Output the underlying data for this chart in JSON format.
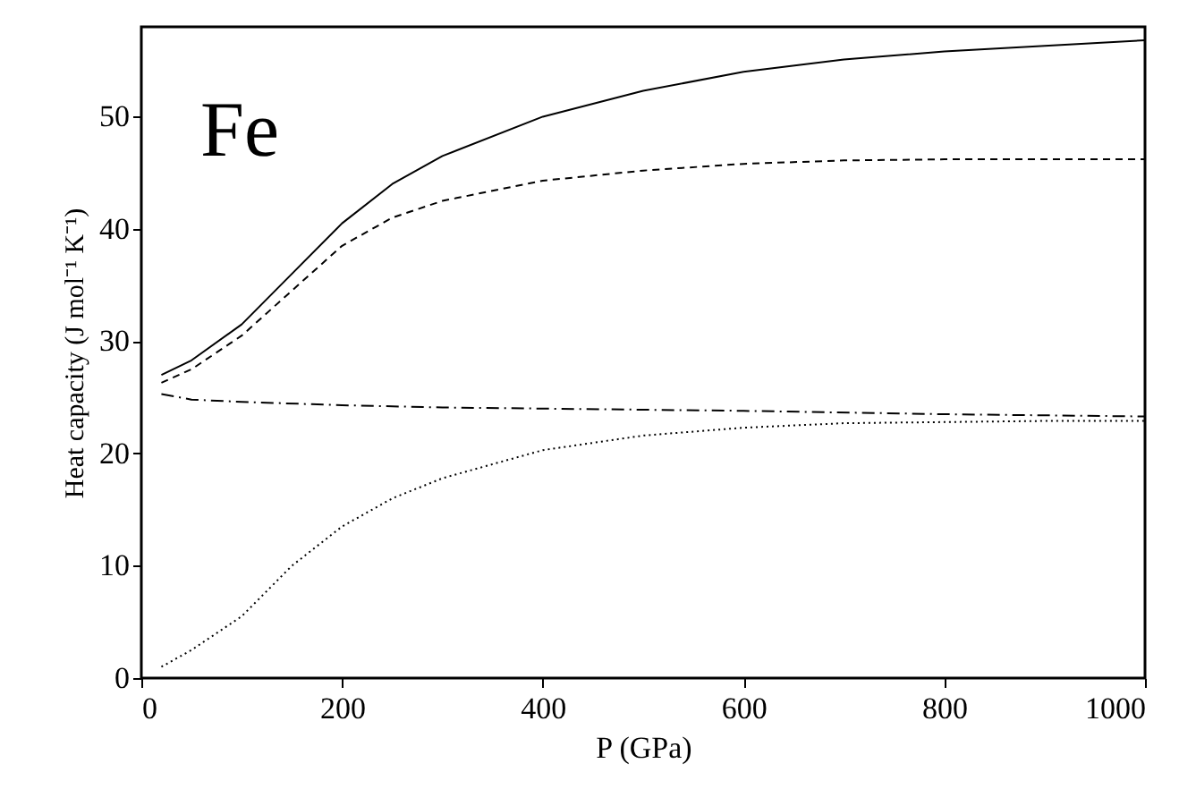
{
  "chart_data": {
    "type": "line",
    "xlabel": "P (GPa)",
    "ylabel": "Heat capacity (J mol⁻¹ K⁻¹)",
    "annotations": [
      "Fe"
    ],
    "xlim": [
      0,
      1000
    ],
    "xticks": [
      0,
      200,
      400,
      600,
      800,
      1000
    ],
    "ylim": [
      0,
      58
    ],
    "yticks": [
      0,
      10,
      20,
      30,
      40,
      50
    ],
    "grid": false,
    "marker": "none",
    "series": [
      {
        "color": "#000000",
        "line_style": "solid",
        "x": [
          20,
          50,
          100,
          150,
          200,
          250,
          300,
          400,
          500,
          600,
          700,
          800,
          900,
          1000
        ],
        "values": [
          27,
          28.3,
          31.5,
          36,
          40.5,
          44,
          46.5,
          50,
          52.3,
          54,
          55.1,
          55.8,
          56.3,
          56.8
        ]
      },
      {
        "color": "#000000",
        "line_style": "dashed",
        "x": [
          20,
          50,
          100,
          150,
          200,
          250,
          300,
          400,
          500,
          600,
          700,
          800,
          900,
          1000
        ],
        "values": [
          26.3,
          27.5,
          30.5,
          34.5,
          38.5,
          41,
          42.5,
          44.3,
          45.2,
          45.8,
          46.1,
          46.2,
          46.2,
          46.2
        ]
      },
      {
        "color": "#000000",
        "line_style": "dashdot",
        "x": [
          20,
          50,
          100,
          200,
          300,
          400,
          600,
          800,
          1000
        ],
        "values": [
          25.3,
          24.8,
          24.6,
          24.3,
          24.1,
          24.0,
          23.8,
          23.5,
          23.3
        ]
      },
      {
        "color": "#000000",
        "line_style": "dotted",
        "x": [
          20,
          50,
          100,
          150,
          200,
          250,
          300,
          400,
          500,
          600,
          700,
          800,
          900,
          1000
        ],
        "values": [
          1,
          2.5,
          5.5,
          10,
          13.5,
          16,
          17.8,
          20.3,
          21.6,
          22.3,
          22.7,
          22.8,
          22.9,
          22.9
        ]
      }
    ]
  }
}
